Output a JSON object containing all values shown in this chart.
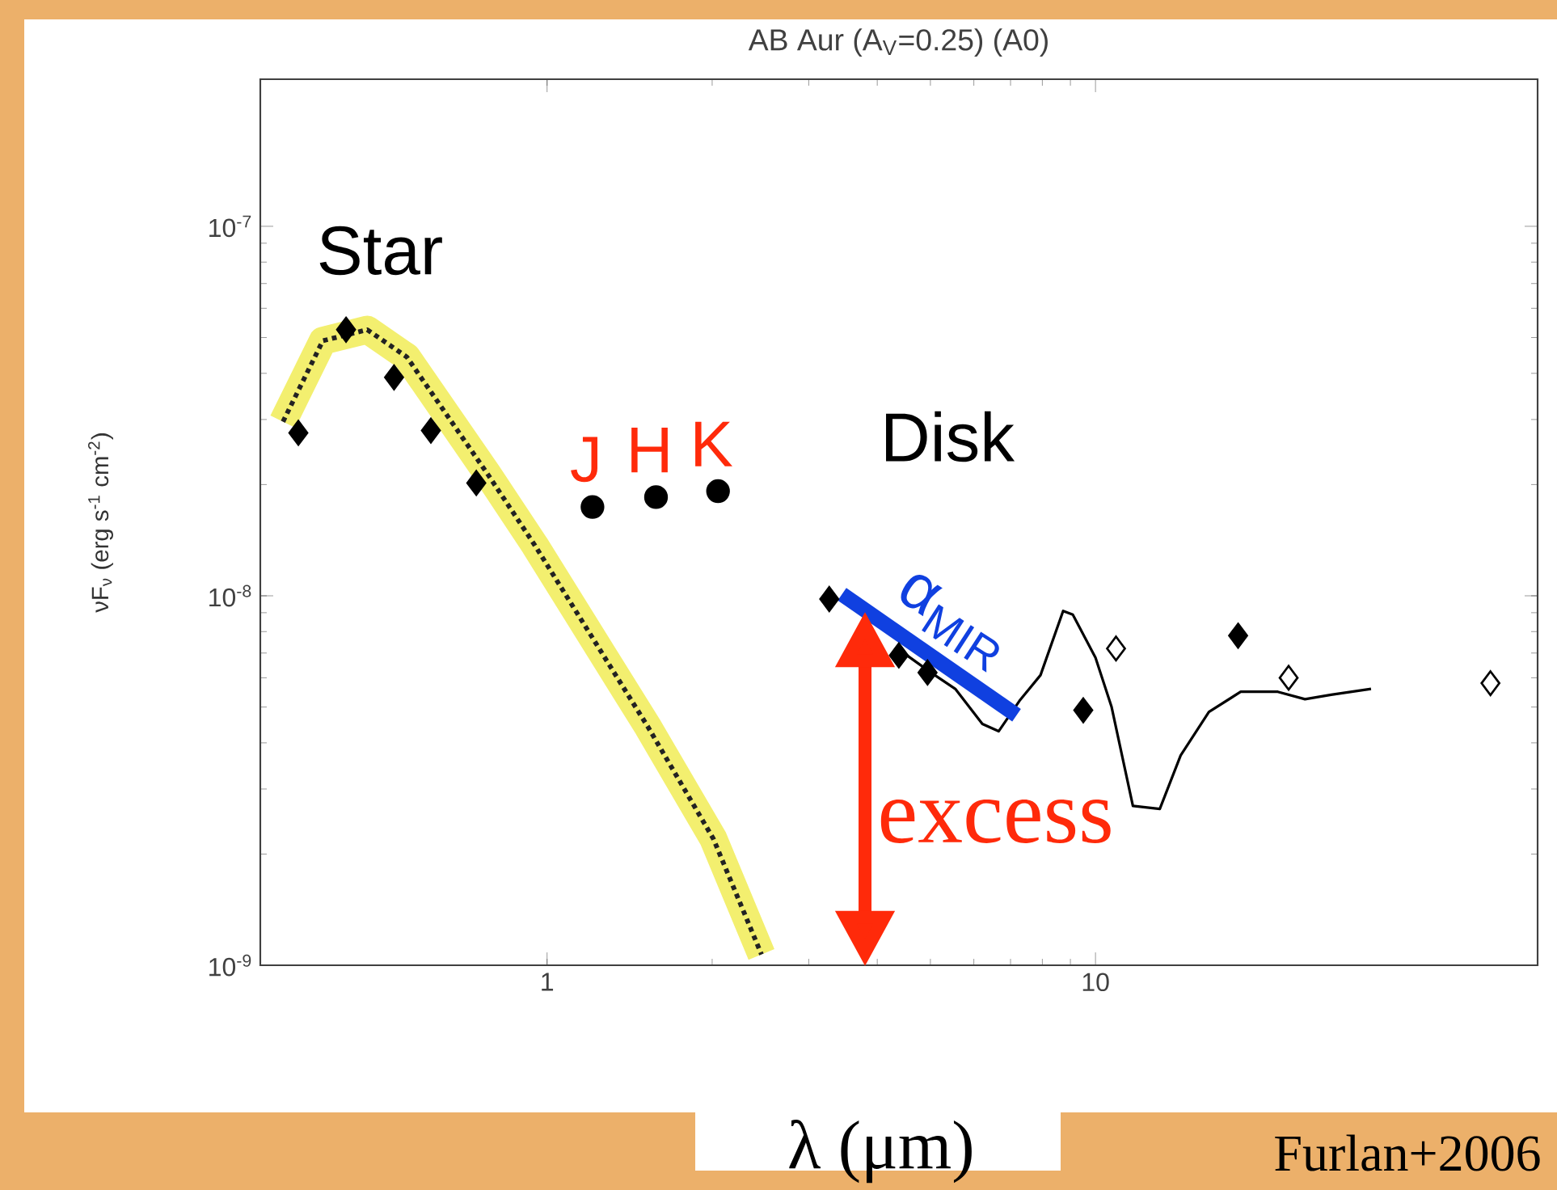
{
  "chart_data": {
    "type": "line",
    "title": "AB Aur (A$_{V}$=0.25) (A0)",
    "xlabel": "λ  (μm)",
    "ylabel": "νF$_{ν}$ (erg s$^{-1}$ cm$^{-2}$)",
    "log": "xy",
    "xlim": [
      0.3,
      64
    ],
    "ylim": [
      1e-09,
      2.5e-07
    ],
    "xticks": [
      1,
      10
    ],
    "yticks": [
      {
        "value": 1e-09,
        "label": "10$^{-9}$"
      },
      {
        "value": 1e-08,
        "label": "10$^{-8}$"
      },
      {
        "value": 1e-07,
        "label": "10$^{-7}$"
      }
    ],
    "series": [
      {
        "color": "#f3ef6f",
        "marker": "none",
        "line_style": "solid",
        "x": [
          0.33,
          0.39,
          0.47,
          0.555,
          0.78,
          0.95,
          1.53,
          2.01,
          2.46
        ],
        "values": [
          2.96e-08,
          4.9e-08,
          5.25e-08,
          4.43e-08,
          2.13e-08,
          1.37e-08,
          4.4e-09,
          2.2e-09,
          1.07e-09
        ]
      },
      {
        "color": "#222222",
        "marker": "none",
        "line_style": "dotted",
        "x": [
          0.33,
          0.39,
          0.47,
          0.555,
          0.78,
          0.95,
          1.53,
          2.01,
          2.46
        ],
        "values": [
          2.96e-08,
          4.9e-08,
          5.25e-08,
          4.43e-08,
          2.13e-08,
          1.37e-08,
          4.4e-09,
          2.2e-09,
          1.07e-09
        ]
      },
      {
        "type": "scatter",
        "color": "#000000",
        "marker": "diamond",
        "x": [
          0.352,
          0.43,
          0.526,
          0.614,
          0.743
        ],
        "values": [
          2.76e-08,
          5.25e-08,
          3.9e-08,
          2.8e-08,
          2.02e-08
        ]
      },
      {
        "type": "scatter",
        "color": "#000000",
        "marker": "circle",
        "x": [
          1.21,
          1.58,
          2.05
        ],
        "values": [
          1.74e-08,
          1.85e-08,
          1.92e-08
        ],
        "value_labels": [
          "J",
          "H",
          "K"
        ]
      },
      {
        "type": "scatter",
        "color": "#000000",
        "marker": "diamond",
        "x": [
          3.27,
          4.38,
          4.94,
          9.5,
          18.2
        ],
        "values": [
          9.8e-09,
          6.9e-09,
          6.2e-09,
          4.9e-09,
          7.8e-09
        ]
      },
      {
        "type": "scatter",
        "color": "#ffffff",
        "marker": "diamond",
        "x": [
          10.9,
          22.5,
          52.5
        ],
        "values": [
          7.2e-09,
          6e-09,
          5.8e-09
        ]
      },
      {
        "color": "#000000",
        "marker": "none",
        "line_style": "solid",
        "x": [
          4.53,
          5.01,
          5.55,
          6.22,
          6.66,
          7.27,
          7.94,
          8.73,
          9.09,
          10.0,
          10.7,
          11.7,
          13.1,
          14.3,
          16.1,
          18.4,
          21.5,
          24.1,
          26.9,
          31.8
        ],
        "values": [
          6.9e-09,
          6.2e-09,
          5.6e-09,
          4.5e-09,
          4.3e-09,
          5.2e-09,
          6.1e-09,
          9.1e-09,
          8.9e-09,
          6.8e-09,
          5e-09,
          2.7e-09,
          2.65e-09,
          3.7e-09,
          4.85e-09,
          5.5e-09,
          5.5e-09,
          5.25e-09,
          5.4e-09,
          5.6e-09
        ]
      },
      {
        "name": "α$_{MIR}$",
        "color": "#1040e0",
        "marker": "none",
        "line_style": "solid",
        "x": [
          3.45,
          7.18
        ],
        "values": [
          1.01e-08,
          4.75e-09
        ]
      }
    ],
    "annotations": [
      "Star",
      "Disk",
      "excess",
      "Furlan+2006"
    ]
  }
}
